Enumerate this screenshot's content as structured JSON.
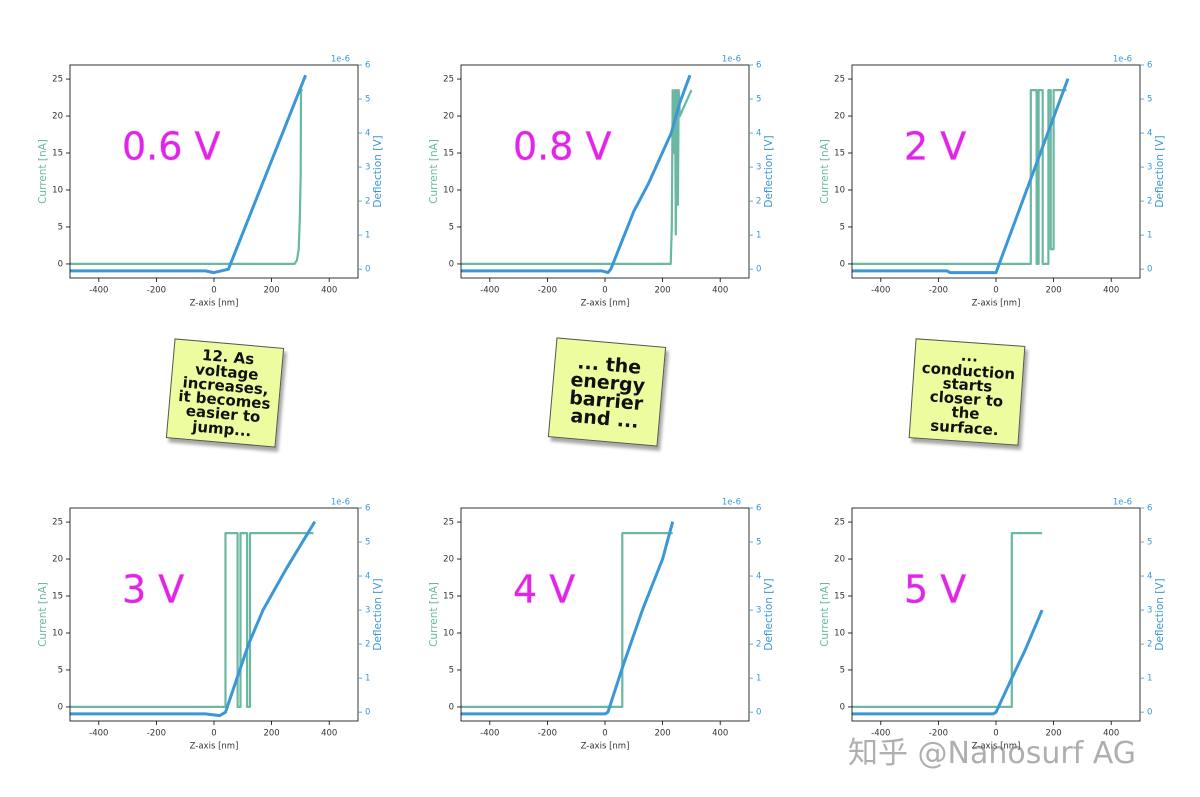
{
  "chart_data": [
    {
      "type": "line",
      "label": "0.6 V",
      "xlabel": "Z-axis [nm]",
      "ylabel": "Current [nA]",
      "y2label": "Deflection [V]",
      "y2offset": "1e-6",
      "xlim": [
        -500,
        500
      ],
      "xticks": [
        -400,
        -200,
        0,
        200,
        400
      ],
      "ylim": [
        -1.9,
        26.9
      ],
      "yticks": [
        0,
        5,
        10,
        15,
        20,
        25
      ],
      "y2lim": [
        -0.26,
        6
      ],
      "y2ticks": [
        0,
        1,
        2,
        3,
        4,
        5,
        6
      ],
      "series": [
        {
          "color": "#6ab8a2",
          "x": [
            -500,
            280,
            288,
            294,
            298,
            300,
            301,
            302,
            308
          ],
          "values": [
            0,
            0,
            0.5,
            2,
            6,
            10,
            12,
            23.5,
            23.5
          ]
        },
        {
          "color": "#3b97d6",
          "axis": "y2",
          "x": [
            -500,
            -30,
            0,
            50,
            318
          ],
          "values": [
            -0.05,
            -0.05,
            -0.1,
            0,
            5.7
          ]
        }
      ]
    },
    {
      "type": "line",
      "label": "0.8 V",
      "xlabel": "Z-axis [nm]",
      "ylabel": "Current [nA]",
      "y2label": "Deflection [V]",
      "y2offset": "1e-6",
      "xlim": [
        -500,
        500
      ],
      "xticks": [
        -400,
        -200,
        0,
        200,
        400
      ],
      "ylim": [
        -1.9,
        26.9
      ],
      "yticks": [
        0,
        5,
        10,
        15,
        20,
        25
      ],
      "y2lim": [
        -0.26,
        6
      ],
      "y2ticks": [
        0,
        1,
        2,
        3,
        4,
        5,
        6
      ],
      "series": [
        {
          "color": "#6ab8a2",
          "x": [
            -500,
            228,
            232,
            235,
            240,
            243,
            246,
            250,
            253,
            256,
            260,
            300
          ],
          "values": [
            0,
            0,
            5,
            23.5,
            15,
            23.5,
            4,
            23.5,
            8,
            23.5,
            20,
            23.5
          ]
        },
        {
          "color": "#3b97d6",
          "axis": "y2",
          "x": [
            -500,
            -10,
            10,
            20,
            100,
            150,
            230,
            260,
            295
          ],
          "values": [
            -0.05,
            -0.05,
            -0.1,
            0,
            1.7,
            2.5,
            4,
            4.9,
            5.7
          ]
        }
      ]
    },
    {
      "type": "line",
      "label": "2 V",
      "xlabel": "Z-axis [nm]",
      "ylabel": "Current [nA]",
      "y2label": "Deflection [V]",
      "y2offset": "1e-6",
      "xlim": [
        -500,
        500
      ],
      "xticks": [
        -400,
        -200,
        0,
        200,
        400
      ],
      "ylim": [
        -1.9,
        26.9
      ],
      "yticks": [
        0,
        5,
        10,
        15,
        20,
        25
      ],
      "y2lim": [
        -0.26,
        6
      ],
      "y2ticks": [
        0,
        1,
        2,
        3,
        4,
        5,
        6
      ],
      "series": [
        {
          "color": "#6ab8a2",
          "x": [
            -500,
            121,
            121,
            141,
            141,
            148,
            148,
            162,
            162,
            182,
            182,
            190,
            190,
            200,
            200,
            245
          ],
          "values": [
            0,
            0,
            23.5,
            23.5,
            0,
            0,
            23.5,
            23.5,
            0,
            0,
            23.5,
            23.5,
            2,
            2,
            23.5,
            23.5
          ]
        },
        {
          "color": "#3b97d6",
          "axis": "y2",
          "x": [
            -500,
            -170,
            -160,
            0,
            250
          ],
          "values": [
            -0.05,
            -0.05,
            -0.1,
            -0.1,
            5.6
          ]
        }
      ]
    },
    {
      "type": "line",
      "label": "3 V",
      "xlabel": "Z-axis [nm]",
      "ylabel": "Current [nA]",
      "y2label": "Deflection [V]",
      "y2offset": "1e-6",
      "xlim": [
        -500,
        500
      ],
      "xticks": [
        -400,
        -200,
        0,
        200,
        400
      ],
      "ylim": [
        -1.9,
        26.9
      ],
      "yticks": [
        0,
        5,
        10,
        15,
        20,
        25
      ],
      "y2lim": [
        -0.26,
        6
      ],
      "y2ticks": [
        0,
        1,
        2,
        3,
        4,
        5,
        6
      ],
      "series": [
        {
          "color": "#6ab8a2",
          "x": [
            -500,
            40,
            40,
            82,
            82,
            92,
            92,
            115,
            115,
            125,
            125,
            345
          ],
          "values": [
            0,
            0,
            23.5,
            23.5,
            0,
            0,
            23.5,
            23.5,
            0,
            0,
            23.5,
            23.5
          ]
        },
        {
          "color": "#3b97d6",
          "axis": "y2",
          "x": [
            -500,
            -30,
            20,
            40,
            80,
            120,
            170,
            250,
            350
          ],
          "values": [
            -0.05,
            -0.05,
            -0.1,
            0,
            1,
            2,
            3,
            4.2,
            5.6
          ]
        }
      ]
    },
    {
      "type": "line",
      "label": "4 V",
      "xlabel": "Z-axis [nm]",
      "ylabel": "Current [nA]",
      "y2label": "Deflection [V]",
      "y2offset": "1e-6",
      "xlim": [
        -500,
        500
      ],
      "xticks": [
        -400,
        -200,
        0,
        200,
        400
      ],
      "ylim": [
        -1.9,
        26.9
      ],
      "yticks": [
        0,
        5,
        10,
        15,
        20,
        25
      ],
      "y2lim": [
        -0.26,
        6
      ],
      "y2ticks": [
        0,
        1,
        2,
        3,
        4,
        5,
        6
      ],
      "series": [
        {
          "color": "#6ab8a2",
          "x": [
            -500,
            60,
            60,
            235
          ],
          "values": [
            0,
            0,
            23.5,
            23.5
          ]
        },
        {
          "color": "#3b97d6",
          "axis": "y2",
          "x": [
            -500,
            0,
            10,
            60,
            130,
            200,
            235
          ],
          "values": [
            -0.05,
            -0.05,
            0,
            1.3,
            3,
            4.5,
            5.6
          ]
        }
      ]
    },
    {
      "type": "line",
      "label": "5 V",
      "xlabel": "Z-axis [nm]",
      "ylabel": "Current [nA]",
      "y2label": "Deflection [V]",
      "y2offset": "1e-6",
      "xlim": [
        -500,
        500
      ],
      "xticks": [
        -400,
        -200,
        0,
        200,
        400
      ],
      "ylim": [
        -1.9,
        26.9
      ],
      "yticks": [
        0,
        5,
        10,
        15,
        20,
        25
      ],
      "y2lim": [
        -0.26,
        6
      ],
      "y2ticks": [
        0,
        1,
        2,
        3,
        4,
        5,
        6
      ],
      "series": [
        {
          "color": "#6ab8a2",
          "x": [
            -500,
            55,
            55,
            160
          ],
          "values": [
            0,
            0,
            23.5,
            23.5
          ]
        },
        {
          "color": "#3b97d6",
          "axis": "y2",
          "x": [
            -500,
            -10,
            0,
            55,
            100,
            160
          ],
          "values": [
            -0.05,
            -0.05,
            0,
            1,
            1.8,
            3
          ]
        }
      ]
    }
  ],
  "notes": [
    {
      "lines": [
        "12. As",
        "voltage",
        "increases,",
        "it becomes",
        "easier to",
        "jump..."
      ]
    },
    {
      "lines": [
        "... the",
        "energy",
        "barrier",
        "and ..."
      ]
    },
    {
      "lines": [
        "...",
        "conduction",
        "starts",
        "closer to",
        "the",
        "surface."
      ]
    }
  ],
  "watermark": "知乎 @Nanosurf AG"
}
